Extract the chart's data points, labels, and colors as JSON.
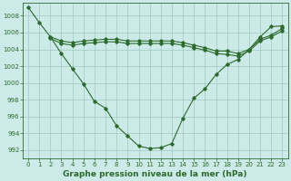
{
  "background_color": "#cceae7",
  "plot_bg_color": "#cceae7",
  "line_color": "#2d6a2d",
  "grid_color": "#9ec8c0",
  "xlabel": "Graphe pression niveau de la mer (hPa)",
  "xlabel_fontsize": 6.5,
  "ylim": [
    991,
    1009.5
  ],
  "xlim": [
    -0.5,
    23.5
  ],
  "yticks": [
    992,
    994,
    996,
    998,
    1000,
    1002,
    1004,
    1006,
    1008
  ],
  "xticks": [
    0,
    1,
    2,
    3,
    4,
    5,
    6,
    7,
    8,
    9,
    10,
    11,
    12,
    13,
    14,
    15,
    16,
    17,
    18,
    19,
    20,
    21,
    22,
    23
  ],
  "series1_x": [
    0,
    1,
    2,
    3,
    4,
    5,
    6,
    7,
    8,
    9,
    10,
    11,
    12,
    13,
    14,
    15,
    16,
    17,
    18,
    19,
    20,
    21,
    22,
    23
  ],
  "series1_y": [
    1009.0,
    1007.2,
    1005.5,
    1003.5,
    1001.7,
    999.9,
    997.8,
    997.0,
    994.9,
    993.7,
    992.5,
    992.2,
    992.3,
    992.8,
    995.8,
    998.2,
    999.3,
    1001.0,
    1002.2,
    1002.8,
    1004.0,
    1005.5,
    1006.7,
    1006.8
  ],
  "series2_x": [
    2,
    3,
    4,
    5,
    6,
    7,
    8,
    9,
    10,
    11,
    12,
    13,
    14,
    15,
    16,
    17,
    18,
    19,
    20,
    21,
    22,
    23
  ],
  "series2_y": [
    1005.5,
    1005.0,
    1004.8,
    1005.0,
    1005.1,
    1005.2,
    1005.2,
    1005.0,
    1005.0,
    1005.0,
    1005.0,
    1005.0,
    1004.8,
    1004.5,
    1004.2,
    1003.8,
    1003.8,
    1003.5,
    1004.0,
    1005.2,
    1005.7,
    1006.5
  ],
  "series3_x": [
    2,
    3,
    4,
    5,
    6,
    7,
    8,
    9,
    10,
    11,
    12,
    13,
    14,
    15,
    16,
    17,
    18,
    19,
    20,
    21,
    22,
    23
  ],
  "series3_y": [
    1005.3,
    1004.7,
    1004.5,
    1004.7,
    1004.8,
    1004.9,
    1004.9,
    1004.7,
    1004.7,
    1004.7,
    1004.7,
    1004.7,
    1004.5,
    1004.2,
    1003.9,
    1003.5,
    1003.4,
    1003.2,
    1003.8,
    1005.0,
    1005.5,
    1006.2
  ],
  "marker": "D",
  "markersize": 1.8,
  "linewidth": 0.8
}
